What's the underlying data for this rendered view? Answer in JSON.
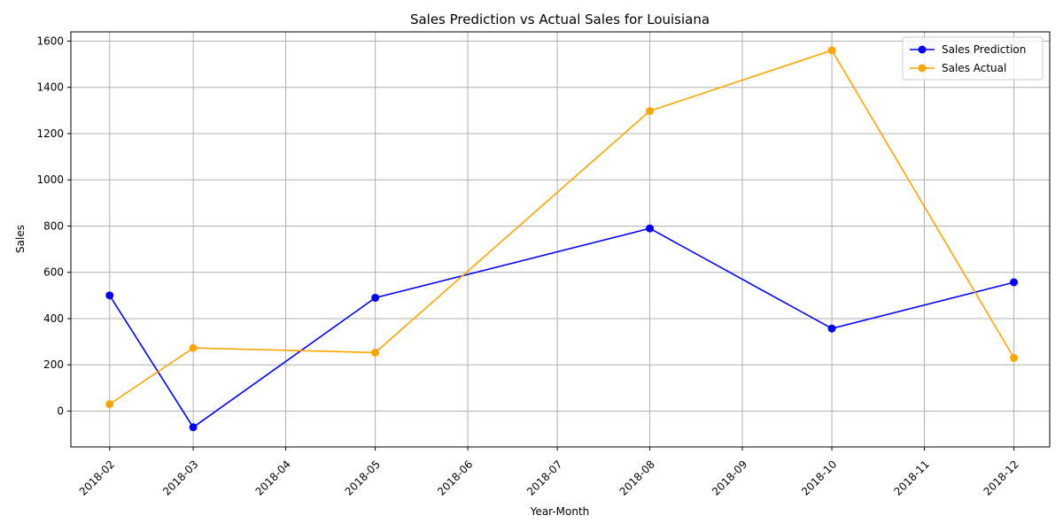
{
  "chart_data": {
    "type": "line",
    "title": "Sales Prediction vs Actual Sales for Louisiana",
    "xlabel": "Year-Month",
    "ylabel": "Sales",
    "x_ticks": [
      "2018-02",
      "2018-03",
      "2018-04",
      "2018-05",
      "2018-06",
      "2018-07",
      "2018-08",
      "2018-09",
      "2018-10",
      "2018-11",
      "2018-12"
    ],
    "y_ticks": [
      0,
      200,
      400,
      600,
      800,
      1000,
      1200,
      1400,
      1600
    ],
    "ylim": [
      -155,
      1640
    ],
    "xlim": [
      "2018-01-19",
      "2018-12-13"
    ],
    "grid": true,
    "legend_position": "top-right",
    "series": [
      {
        "name": "Sales Prediction",
        "color": "#0000ff",
        "points": [
          {
            "x": "2018-02-01",
            "y": 500
          },
          {
            "x": "2018-03-01",
            "y": -70
          },
          {
            "x": "2018-05-01",
            "y": 490
          },
          {
            "x": "2018-08-01",
            "y": 790
          },
          {
            "x": "2018-10-01",
            "y": 357
          },
          {
            "x": "2018-12-01",
            "y": 557
          }
        ]
      },
      {
        "name": "Sales Actual",
        "color": "#ffa500",
        "points": [
          {
            "x": "2018-02-01",
            "y": 30
          },
          {
            "x": "2018-03-01",
            "y": 273
          },
          {
            "x": "2018-05-01",
            "y": 253
          },
          {
            "x": "2018-08-01",
            "y": 1298
          },
          {
            "x": "2018-10-01",
            "y": 1560
          },
          {
            "x": "2018-12-01",
            "y": 230
          }
        ]
      }
    ]
  }
}
